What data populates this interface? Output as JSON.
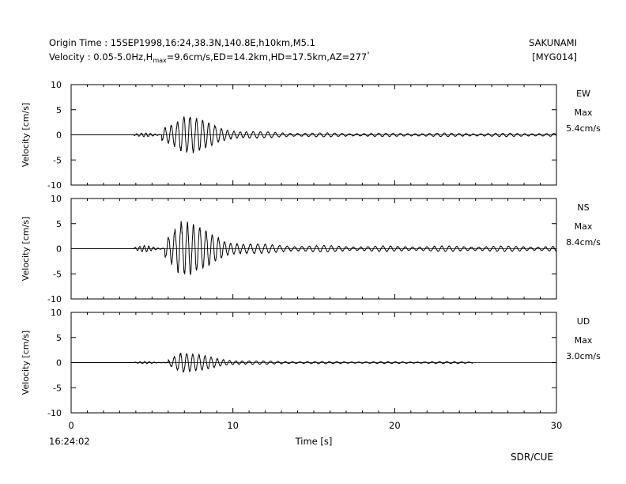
{
  "header": {
    "origin_line": "Origin Time : 15SEP1998,16:24,38.3N,140.8E,h10km,M5.1",
    "velocity_prefix": "Velocity : 0.05-5.0Hz,H",
    "velocity_sub": "max",
    "velocity_suffix": "=9.6cm/s,ED=14.2km,HD=17.5km,AZ=277",
    "degree_mark": "°",
    "station_name": "SAKUNAMI",
    "station_code": "[MYG014]"
  },
  "footer": {
    "start_time": "16:24:02",
    "credit": "SDR/CUE"
  },
  "colors": {
    "trace": "#000000",
    "axes": "#000000",
    "background": "#ffffff"
  },
  "chart_data": [
    {
      "type": "line",
      "component": "EW",
      "max_label": "Max",
      "max_value_label": "5.4cm/s",
      "peak": 5.4,
      "onset_s": 3.9,
      "strong_start_s": 5.6,
      "peak_time_s": 7.0,
      "ylabel": "Velocity [cm/s]",
      "xlabel": "Time [s]",
      "xlim": [
        0,
        30
      ],
      "ylim": [
        -10,
        10
      ],
      "yticks": [
        10,
        5,
        0,
        -5,
        -10
      ],
      "xticks": [
        0,
        10,
        20,
        30
      ]
    },
    {
      "type": "line",
      "component": "NS",
      "max_label": "Max",
      "max_value_label": "8.4cm/s",
      "peak": 8.4,
      "onset_s": 3.9,
      "strong_start_s": 5.8,
      "peak_time_s": 6.8,
      "ylabel": "Velocity [cm/s]",
      "xlabel": "Time [s]",
      "xlim": [
        0,
        30
      ],
      "ylim": [
        -10,
        10
      ],
      "yticks": [
        10,
        5,
        0,
        -5,
        -10
      ],
      "xticks": [
        0,
        10,
        20,
        30
      ]
    },
    {
      "type": "line",
      "component": "UD",
      "max_label": "Max",
      "max_value_label": "3.0cm/s",
      "peak": 3.0,
      "onset_s": 3.9,
      "strong_start_s": 6.0,
      "peak_time_s": 6.8,
      "trace_end_s": 24.8,
      "ylabel": "Velocity [cm/s]",
      "xlabel": "Time [s]",
      "xlim": [
        0,
        30
      ],
      "ylim": [
        -10,
        10
      ],
      "yticks": [
        10,
        5,
        0,
        -5,
        -10
      ],
      "xticks": [
        0,
        10,
        20,
        30
      ]
    }
  ]
}
